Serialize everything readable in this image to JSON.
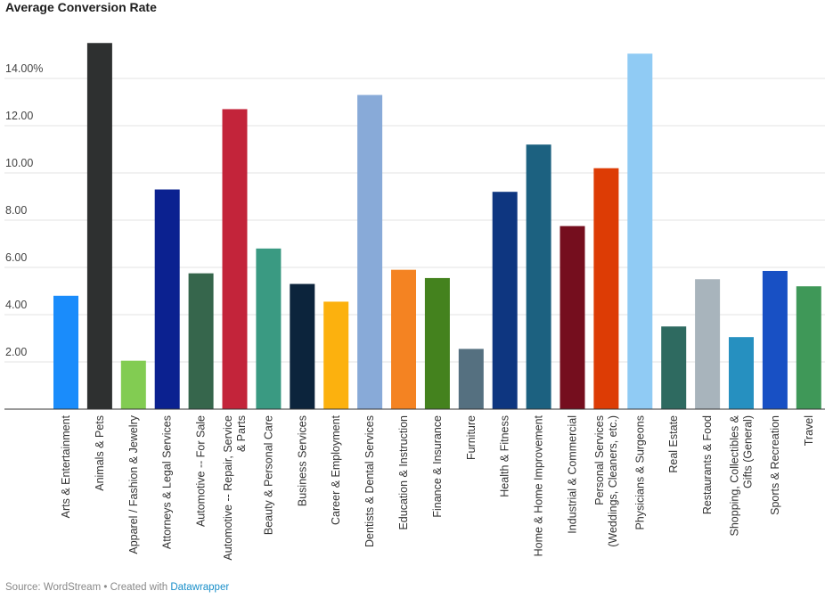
{
  "chart_data": {
    "type": "bar",
    "title": "Average Conversion Rate",
    "xlabel": "",
    "ylabel": "",
    "ylim": [
      0,
      16
    ],
    "y_ticks": [
      {
        "value": 2,
        "label": "2.00"
      },
      {
        "value": 4,
        "label": "4.00"
      },
      {
        "value": 6,
        "label": "6.00"
      },
      {
        "value": 8,
        "label": "8.00"
      },
      {
        "value": 10,
        "label": "10.00"
      },
      {
        "value": 12,
        "label": "12.00"
      },
      {
        "value": 14,
        "label": "14.00%"
      }
    ],
    "grid": true,
    "categories": [
      [
        "Arts & Entertainment"
      ],
      [
        "Animals & Pets"
      ],
      [
        "Apparel / Fashion & Jewelry"
      ],
      [
        "Attorneys & Legal Services"
      ],
      [
        "Automotive -- For Sale"
      ],
      [
        "Automotive -- Repair, Service",
        "& Parts"
      ],
      [
        "Beauty & Personal Care"
      ],
      [
        "Business Services"
      ],
      [
        "Career & Employment"
      ],
      [
        "Dentists & Dental Services"
      ],
      [
        "Education & Instruction"
      ],
      [
        "Finance & Insurance"
      ],
      [
        "Furniture"
      ],
      [
        "Health & Fitness"
      ],
      [
        "Home & Home Improvement"
      ],
      [
        "Industrial & Commercial"
      ],
      [
        "Personal Services",
        "(Weddings, Cleaners, etc.)"
      ],
      [
        "Physicians & Surgeons"
      ],
      [
        "Real Estate"
      ],
      [
        "Restaurants & Food"
      ],
      [
        "Shopping, Collectibles &",
        "Gifts (General)"
      ],
      [
        "Sports & Recreation"
      ],
      [
        "Travel"
      ]
    ],
    "values": [
      4.8,
      15.5,
      2.05,
      9.3,
      5.75,
      12.7,
      6.8,
      5.3,
      4.55,
      13.3,
      5.9,
      5.55,
      2.55,
      9.2,
      11.2,
      7.75,
      10.2,
      15.05,
      3.5,
      5.5,
      3.05,
      5.85,
      5.2
    ],
    "colors": [
      "#1a8cfb",
      "#2e3030",
      "#82cc52",
      "#0b2190",
      "#36664c",
      "#c3243a",
      "#3a9a82",
      "#0c243c",
      "#fcb10e",
      "#88aad8",
      "#f48322",
      "#44821e",
      "#557080",
      "#0e3680",
      "#1c6180",
      "#750e1e",
      "#dd3c05",
      "#90cbf4",
      "#2e6a60",
      "#a8b4bc",
      "#2690c0",
      "#1850c4",
      "#3f9858"
    ]
  },
  "footer": {
    "source": "Source: WordStream • Created with ",
    "link": "Datawrapper"
  }
}
